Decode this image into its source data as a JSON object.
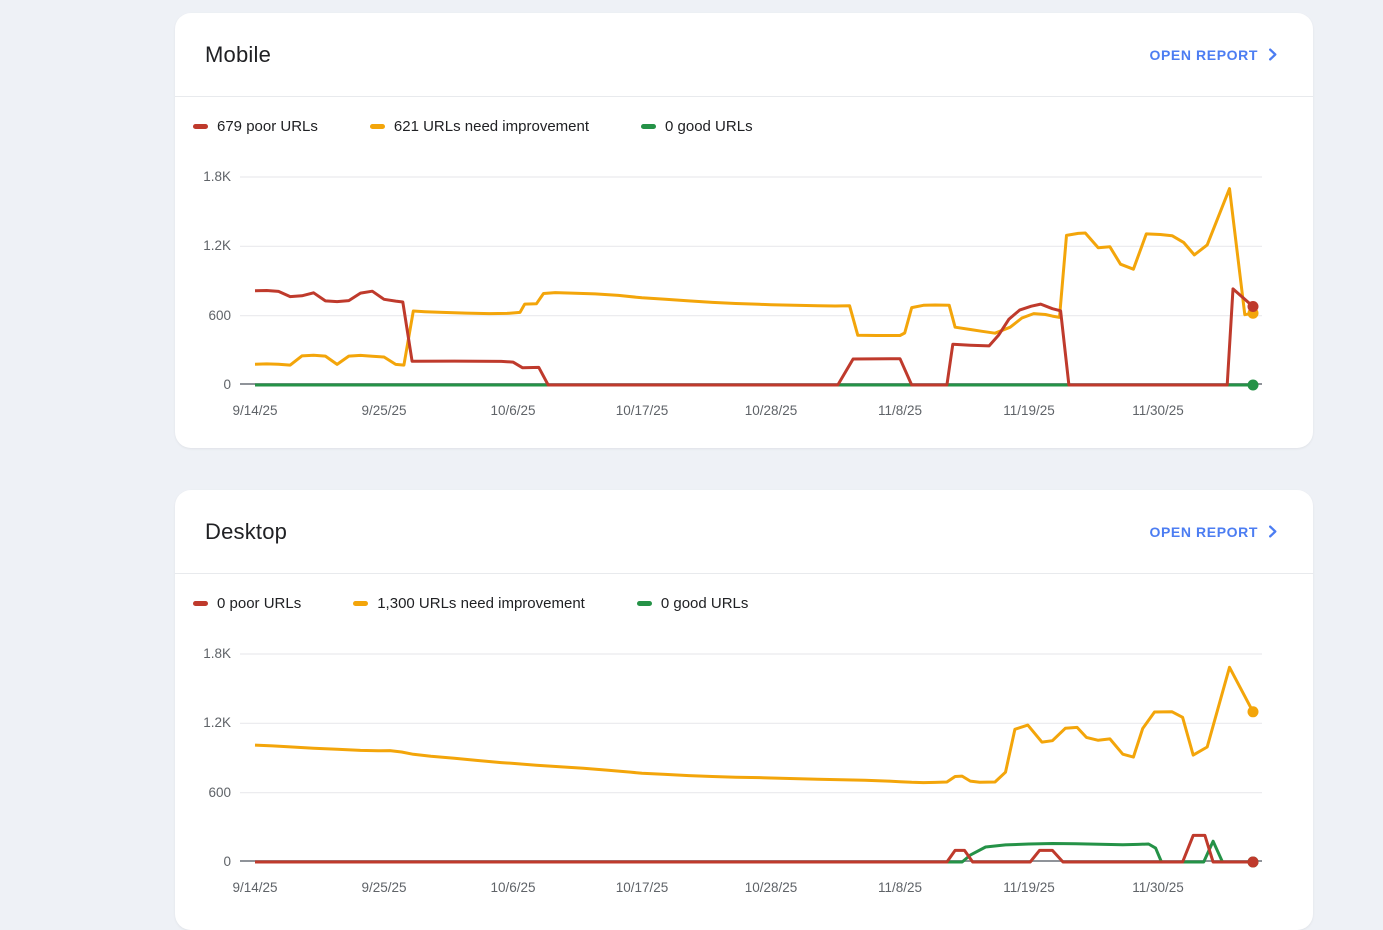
{
  "colors": {
    "page_bg": "#eef1f6",
    "card_bg": "#ffffff",
    "red": "#bf3a2c",
    "orange": "#f3a50a",
    "green": "#259247",
    "blue": "#4c7df2",
    "grid": "#e9eaed",
    "axis": "#8f9399",
    "divider": "#e8eaed",
    "text_primary": "#202124",
    "text_secondary": "#5f6368"
  },
  "cards": [
    {
      "title": "Mobile",
      "open_report_label": "OPEN REPORT",
      "legend": [
        {
          "color": "red",
          "label": "679 poor URLs"
        },
        {
          "color": "orange",
          "label": "621 URLs need improvement"
        },
        {
          "color": "green",
          "label": "0 good URLs"
        }
      ]
    },
    {
      "title": "Desktop",
      "open_report_label": "OPEN REPORT",
      "legend": [
        {
          "color": "red",
          "label": "0 poor URLs"
        },
        {
          "color": "orange",
          "label": "1,300 URLs need improvement"
        },
        {
          "color": "green",
          "label": "0 good URLs"
        }
      ]
    }
  ],
  "chart_data": [
    {
      "type": "line",
      "name": "Mobile",
      "ylim": [
        0,
        1800
      ],
      "x_days_range": [
        0,
        85.1
      ],
      "y_ticks": [
        {
          "value": 1800,
          "label": "1.8K"
        },
        {
          "value": 1200,
          "label": "1.2K"
        },
        {
          "value": 600,
          "label": "600"
        },
        {
          "value": 0,
          "label": "0"
        }
      ],
      "x_ticks": [
        {
          "day": 0,
          "label": "9/14/25"
        },
        {
          "day": 11,
          "label": "9/25/25"
        },
        {
          "day": 22,
          "label": "10/6/25"
        },
        {
          "day": 33,
          "label": "10/17/25"
        },
        {
          "day": 44,
          "label": "10/28/25"
        },
        {
          "day": 55,
          "label": "11/8/25"
        },
        {
          "day": 66,
          "label": "11/19/25"
        },
        {
          "day": 77,
          "label": "11/30/25"
        }
      ],
      "series": [
        {
          "name": "good URLs",
          "color": "green",
          "latest": 0,
          "end_dot": true,
          "points": [
            [
              0,
              0
            ],
            [
              85.1,
              0
            ]
          ]
        },
        {
          "name": "URLs need improvement",
          "color": "orange",
          "latest": 621,
          "end_dot": true,
          "points": [
            [
              0,
              180
            ],
            [
              1,
              183
            ],
            [
              2,
              180
            ],
            [
              3,
              172
            ],
            [
              4,
              252
            ],
            [
              5,
              258
            ],
            [
              6,
              250
            ],
            [
              7,
              178
            ],
            [
              8,
              250
            ],
            [
              9,
              256
            ],
            [
              10,
              248
            ],
            [
              11,
              242
            ],
            [
              12,
              178
            ],
            [
              12.7,
              172
            ],
            [
              13.5,
              640
            ],
            [
              14.5,
              634
            ],
            [
              16,
              628
            ],
            [
              18,
              622
            ],
            [
              20,
              618
            ],
            [
              21.5,
              620
            ],
            [
              22.6,
              628
            ],
            [
              23,
              700
            ],
            [
              24,
              703
            ],
            [
              24.6,
              792
            ],
            [
              25.6,
              800
            ],
            [
              27,
              795
            ],
            [
              29,
              788
            ],
            [
              31,
              775
            ],
            [
              33,
              755
            ],
            [
              35,
              742
            ],
            [
              37,
              728
            ],
            [
              39,
              715
            ],
            [
              41,
              705
            ],
            [
              43,
              698
            ],
            [
              44,
              694
            ],
            [
              46,
              690
            ],
            [
              48,
              686
            ],
            [
              49.5,
              684
            ],
            [
              50.7,
              685
            ],
            [
              51.4,
              430
            ],
            [
              53,
              428
            ],
            [
              55,
              428
            ],
            [
              55.4,
              450
            ],
            [
              56,
              670
            ],
            [
              57,
              690
            ],
            [
              58,
              692
            ],
            [
              59.2,
              690
            ],
            [
              59.7,
              500
            ],
            [
              61,
              480
            ],
            [
              62,
              465
            ],
            [
              63.1,
              448
            ],
            [
              64.4,
              500
            ],
            [
              65.4,
              580
            ],
            [
              66.4,
              618
            ],
            [
              67.4,
              610
            ],
            [
              68,
              596
            ],
            [
              68.6,
              585
            ],
            [
              69.2,
              1295
            ],
            [
              70.2,
              1312
            ],
            [
              70.8,
              1315
            ],
            [
              71.9,
              1188
            ],
            [
              72.9,
              1196
            ],
            [
              73.8,
              1045
            ],
            [
              74.9,
              1002
            ],
            [
              76,
              1308
            ],
            [
              77.2,
              1302
            ],
            [
              78.2,
              1292
            ],
            [
              79.2,
              1232
            ],
            [
              80.1,
              1126
            ],
            [
              81.2,
              1212
            ],
            [
              83.1,
              1700
            ],
            [
              84.4,
              608
            ],
            [
              85.1,
              621
            ]
          ]
        },
        {
          "name": "poor URLs",
          "color": "red",
          "latest": 679,
          "end_dot": true,
          "points": [
            [
              0,
              815
            ],
            [
              1,
              818
            ],
            [
              2,
              810
            ],
            [
              3,
              765
            ],
            [
              4,
              772
            ],
            [
              5,
              798
            ],
            [
              6,
              728
            ],
            [
              7,
              722
            ],
            [
              8,
              730
            ],
            [
              9,
              795
            ],
            [
              10,
              812
            ],
            [
              11,
              742
            ],
            [
              12,
              726
            ],
            [
              12.6,
              718
            ],
            [
              13.4,
              205
            ],
            [
              17,
              207
            ],
            [
              21,
              204
            ],
            [
              22,
              198
            ],
            [
              22.8,
              150
            ],
            [
              24.2,
              152
            ],
            [
              25,
              0
            ],
            [
              49.7,
              0
            ],
            [
              51,
              225
            ],
            [
              55,
              228
            ],
            [
              56,
              0
            ],
            [
              59,
              0
            ],
            [
              59.5,
              352
            ],
            [
              61,
              344
            ],
            [
              62.6,
              338
            ],
            [
              63.4,
              430
            ],
            [
              64.3,
              570
            ],
            [
              65.2,
              648
            ],
            [
              66.2,
              682
            ],
            [
              67,
              700
            ],
            [
              68,
              660
            ],
            [
              68.7,
              642
            ],
            [
              69.4,
              0
            ],
            [
              82.9,
              0
            ],
            [
              83.4,
              832
            ],
            [
              85.1,
              679
            ]
          ]
        }
      ]
    },
    {
      "type": "line",
      "name": "Desktop",
      "ylim": [
        0,
        1800
      ],
      "x_days_range": [
        0,
        85.1
      ],
      "y_ticks": [
        {
          "value": 1800,
          "label": "1.8K"
        },
        {
          "value": 1200,
          "label": "1.2K"
        },
        {
          "value": 600,
          "label": "600"
        },
        {
          "value": 0,
          "label": "0"
        }
      ],
      "x_ticks": [
        {
          "day": 0,
          "label": "9/14/25"
        },
        {
          "day": 11,
          "label": "9/25/25"
        },
        {
          "day": 22,
          "label": "10/6/25"
        },
        {
          "day": 33,
          "label": "10/17/25"
        },
        {
          "day": 44,
          "label": "10/28/25"
        },
        {
          "day": 55,
          "label": "11/8/25"
        },
        {
          "day": 66,
          "label": "11/19/25"
        },
        {
          "day": 77,
          "label": "11/30/25"
        }
      ],
      "series": [
        {
          "name": "good URLs",
          "color": "green",
          "latest": 0,
          "end_dot": true,
          "points": [
            [
              0,
              0
            ],
            [
              60.3,
              0
            ],
            [
              61,
              60
            ],
            [
              62.3,
              130
            ],
            [
              64,
              148
            ],
            [
              66,
              156
            ],
            [
              68,
              160
            ],
            [
              70,
              158
            ],
            [
              72,
              153
            ],
            [
              74,
              149
            ],
            [
              75.3,
              152
            ],
            [
              76.2,
              156
            ],
            [
              76.8,
              120
            ],
            [
              77.3,
              0
            ],
            [
              80.9,
              0
            ],
            [
              81.7,
              180
            ],
            [
              82.5,
              0
            ],
            [
              85.1,
              0
            ]
          ]
        },
        {
          "name": "URLs need improvement",
          "color": "orange",
          "latest": 1300,
          "end_dot": true,
          "points": [
            [
              0,
              1012
            ],
            [
              1.5,
              1005
            ],
            [
              3,
              996
            ],
            [
              5,
              985
            ],
            [
              7,
              975
            ],
            [
              9,
              966
            ],
            [
              10.5,
              962
            ],
            [
              11.5,
              964
            ],
            [
              12.5,
              952
            ],
            [
              13.5,
              932
            ],
            [
              15,
              915
            ],
            [
              17,
              897
            ],
            [
              19,
              878
            ],
            [
              21,
              860
            ],
            [
              22,
              853
            ],
            [
              24,
              838
            ],
            [
              26,
              824
            ],
            [
              28,
              812
            ],
            [
              30,
              795
            ],
            [
              32,
              778
            ],
            [
              33,
              768
            ],
            [
              35,
              758
            ],
            [
              37,
              748
            ],
            [
              39,
              740
            ],
            [
              41,
              734
            ],
            [
              43,
              730
            ],
            [
              44,
              727
            ],
            [
              46,
              722
            ],
            [
              48,
              716
            ],
            [
              50,
              712
            ],
            [
              52,
              707
            ],
            [
              54,
              700
            ],
            [
              55,
              695
            ],
            [
              56,
              690
            ],
            [
              57,
              687
            ],
            [
              58,
              689
            ],
            [
              59,
              692
            ],
            [
              59.7,
              740
            ],
            [
              60.3,
              743
            ],
            [
              61,
              700
            ],
            [
              61.8,
              690
            ],
            [
              63.1,
              692
            ],
            [
              64,
              777
            ],
            [
              64.8,
              1148
            ],
            [
              65.9,
              1185
            ],
            [
              67.1,
              1038
            ],
            [
              68,
              1050
            ],
            [
              69.1,
              1157
            ],
            [
              70.1,
              1165
            ],
            [
              70.9,
              1078
            ],
            [
              71.9,
              1053
            ],
            [
              72.9,
              1065
            ],
            [
              74,
              933
            ],
            [
              74.9,
              908
            ],
            [
              75.7,
              1155
            ],
            [
              76.7,
              1298
            ],
            [
              78.2,
              1300
            ],
            [
              79.1,
              1252
            ],
            [
              80,
              925
            ],
            [
              81.2,
              995
            ],
            [
              83.1,
              1685
            ],
            [
              85.1,
              1300
            ]
          ]
        },
        {
          "name": "poor URLs",
          "color": "red",
          "latest": 0,
          "end_dot": true,
          "points": [
            [
              0,
              0
            ],
            [
              59,
              0
            ],
            [
              59.7,
              100
            ],
            [
              60.5,
              100
            ],
            [
              61.2,
              0
            ],
            [
              66.1,
              0
            ],
            [
              66.9,
              100
            ],
            [
              68,
              100
            ],
            [
              68.9,
              0
            ],
            [
              79.1,
              0
            ],
            [
              80,
              230
            ],
            [
              81,
              230
            ],
            [
              81.7,
              0
            ],
            [
              85.1,
              0
            ]
          ]
        }
      ]
    }
  ]
}
